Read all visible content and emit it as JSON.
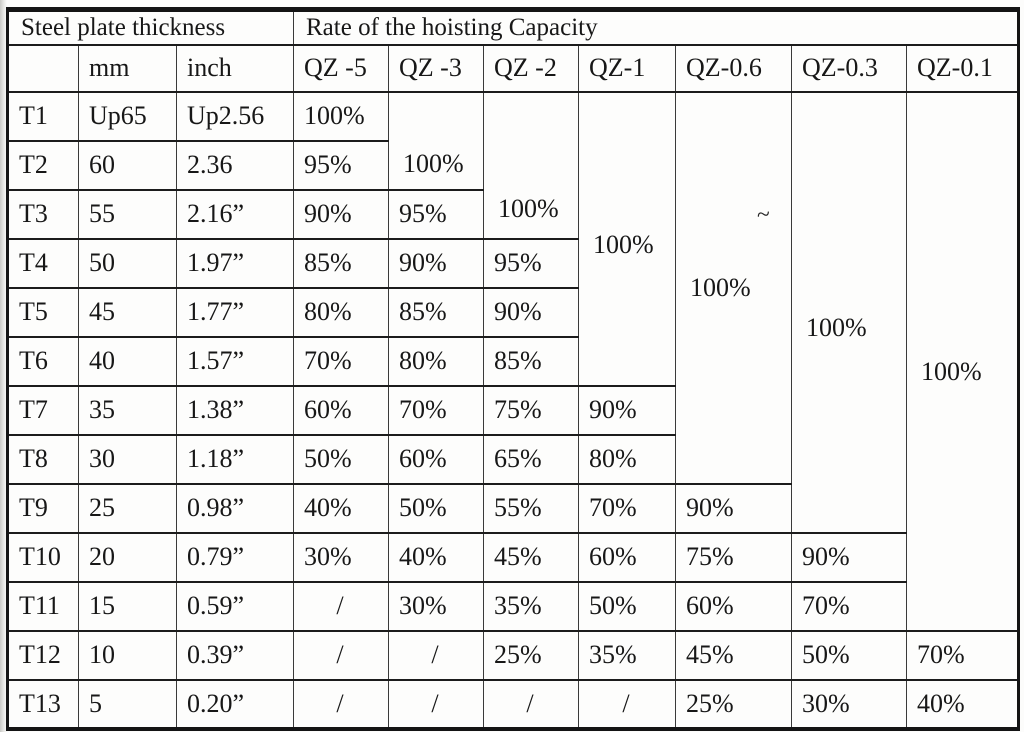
{
  "page": {
    "stray_mark": "~"
  },
  "table": {
    "title_row": {
      "left": "Steel plate thickness",
      "right": "Rate of the hoisting Capacity"
    },
    "column_headers": [
      "",
      "mm",
      "inch",
      "QZ -5",
      "QZ -3",
      "QZ -2",
      "QZ-1",
      "QZ-0.6",
      "QZ-0.3",
      "QZ-0.1"
    ],
    "column_keys": [
      "t",
      "mm",
      "inch",
      "qz5",
      "qz3",
      "qz2",
      "qz1",
      "qz06",
      "qz03",
      "qz01"
    ],
    "rows": [
      {
        "cells": [
          "T1",
          "Up65",
          "Up2.56",
          "100%",
          {
            "v": "100%",
            "span": 2
          },
          {
            "v": "100%",
            "span": 3
          },
          {
            "v": "100%",
            "span": 6
          },
          {
            "v": "100%",
            "span": 8
          },
          {
            "v": "100%",
            "span": 9
          },
          {
            "v": "100%",
            "span": 11
          }
        ]
      },
      {
        "cells": [
          "T2",
          "60",
          "2.36",
          "95%",
          null,
          null,
          null,
          null,
          null,
          null
        ]
      },
      {
        "cells": [
          "T3",
          "55",
          "2.16”",
          "90%",
          "95%",
          null,
          null,
          null,
          null,
          null
        ]
      },
      {
        "cells": [
          "T4",
          "50",
          "1.97”",
          "85%",
          "90%",
          "95%",
          null,
          null,
          null,
          null
        ]
      },
      {
        "cells": [
          "T5",
          "45",
          "1.77”",
          "80%",
          "85%",
          "90%",
          null,
          null,
          null,
          null
        ]
      },
      {
        "cells": [
          "T6",
          "40",
          "1.57”",
          "70%",
          "80%",
          "85%",
          null,
          null,
          null,
          null
        ]
      },
      {
        "cells": [
          "T7",
          "35",
          "1.38”",
          "60%",
          "70%",
          "75%",
          "90%",
          null,
          null,
          null
        ]
      },
      {
        "cells": [
          "T8",
          "30",
          "1.18”",
          "50%",
          "60%",
          "65%",
          "80%",
          null,
          null,
          null
        ]
      },
      {
        "cells": [
          "T9",
          "25",
          "0.98”",
          "40%",
          "50%",
          "55%",
          "70%",
          "90%",
          null,
          null
        ]
      },
      {
        "cells": [
          "T10",
          "20",
          "0.79”",
          "30%",
          "40%",
          "45%",
          "60%",
          "75%",
          "90%",
          null
        ]
      },
      {
        "cells": [
          "T11",
          "15",
          "0.59”",
          "/",
          "30%",
          "35%",
          "50%",
          "60%",
          "70%",
          null
        ]
      },
      {
        "cells": [
          "T12",
          "10",
          "0.39”",
          "/",
          "/",
          "25%",
          "35%",
          "45%",
          "50%",
          "70%"
        ]
      },
      {
        "cells": [
          "T13",
          "5",
          "0.20”",
          "/",
          "/",
          "/",
          "/",
          "25%",
          "30%",
          "40%"
        ]
      }
    ]
  }
}
